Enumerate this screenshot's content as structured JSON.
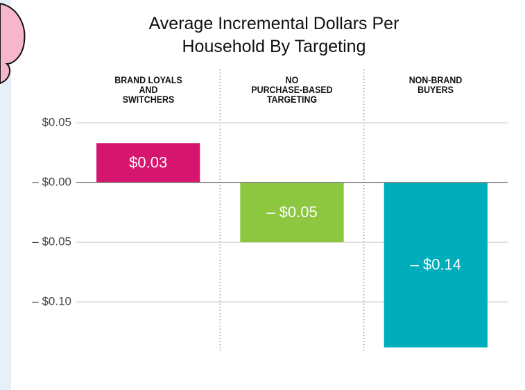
{
  "chart_data": {
    "type": "bar",
    "title": "Average Incremental Dollars Per\nHousehold By Targeting",
    "categories": [
      "BRAND LOYALS\nAND\nSWITCHERS",
      "NO\nPURCHASE-BASED\nTARGETING",
      "NON-BRAND\nBUYERS"
    ],
    "values": [
      0.033,
      -0.05,
      -0.138
    ],
    "value_labels": [
      "$0.03",
      "– $0.05",
      "– $0.14"
    ],
    "colors": [
      "#d6156f",
      "#8dc63f",
      "#00adbb"
    ],
    "ylim": [
      -0.14,
      0.05
    ],
    "yticks": [
      {
        "value": 0.05,
        "label": "$0.05"
      },
      {
        "value": 0,
        "label": "– $0.00"
      },
      {
        "value": -0.05,
        "label": "– $0.05"
      },
      {
        "value": -0.1,
        "label": "– $0.10"
      }
    ],
    "grid": true
  }
}
